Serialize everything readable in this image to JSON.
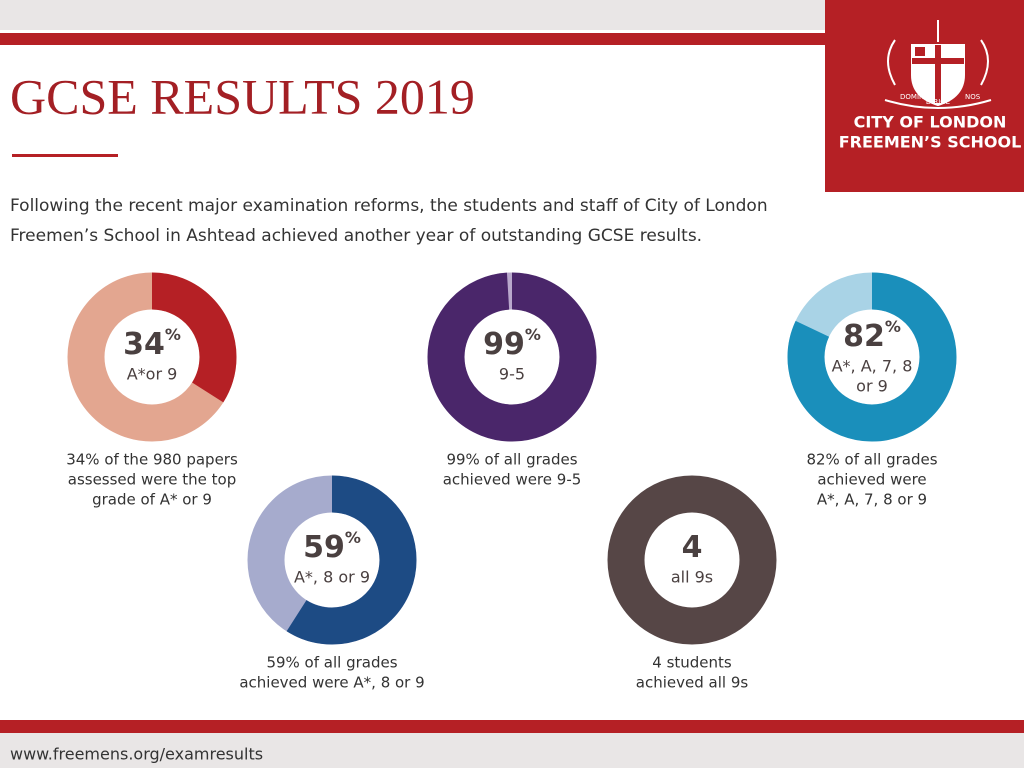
{
  "header": {
    "title": "GCSE RESULTS 2019",
    "intro": [
      "Following the recent major examination reforms, the students and staff of City of London",
      "Freemen’s School in Ashtead achieved another year of outstanding GCSE results."
    ]
  },
  "logo": {
    "motto": [
      "DOMINE",
      "DIRIGE",
      "NOS"
    ],
    "line1": "CITY OF LONDON",
    "line2": "FREEMEN’S SCHOOL"
  },
  "stats": [
    {
      "value": 34,
      "unit": "%",
      "label": [
        "A*or 9"
      ],
      "caption": [
        "34% of the 980 papers",
        "assessed were the top",
        "grade of A* or 9"
      ],
      "color": "#b52025",
      "track_color": "#e3a690"
    },
    {
      "value": 99,
      "unit": "%",
      "label": [
        "9-5"
      ],
      "caption": [
        "99% of all grades",
        "achieved were 9-5"
      ],
      "color": "#4a266a",
      "track_color": "#b9a8cc"
    },
    {
      "value": 82,
      "unit": "%",
      "label": [
        "A*, A, 7, 8",
        "or 9"
      ],
      "caption": [
        "82% of all grades",
        "achieved were",
        "A*, A, 7, 8 or 9"
      ],
      "color": "#1a8fbb",
      "track_color": "#a9d3e6"
    },
    {
      "value": 59,
      "unit": "%",
      "label": [
        "A*, 8  or 9"
      ],
      "caption": [
        "59% of all grades",
        "achieved were A*, 8 or 9"
      ],
      "color": "#1d4b84",
      "track_color": "#a6abcd"
    },
    {
      "value": 4,
      "label": [
        "all 9s"
      ],
      "caption": [
        "4 students",
        "achieved all 9s"
      ],
      "color": "#564646"
    }
  ],
  "footer": {
    "url": "www.freemens.org/examresults"
  }
}
